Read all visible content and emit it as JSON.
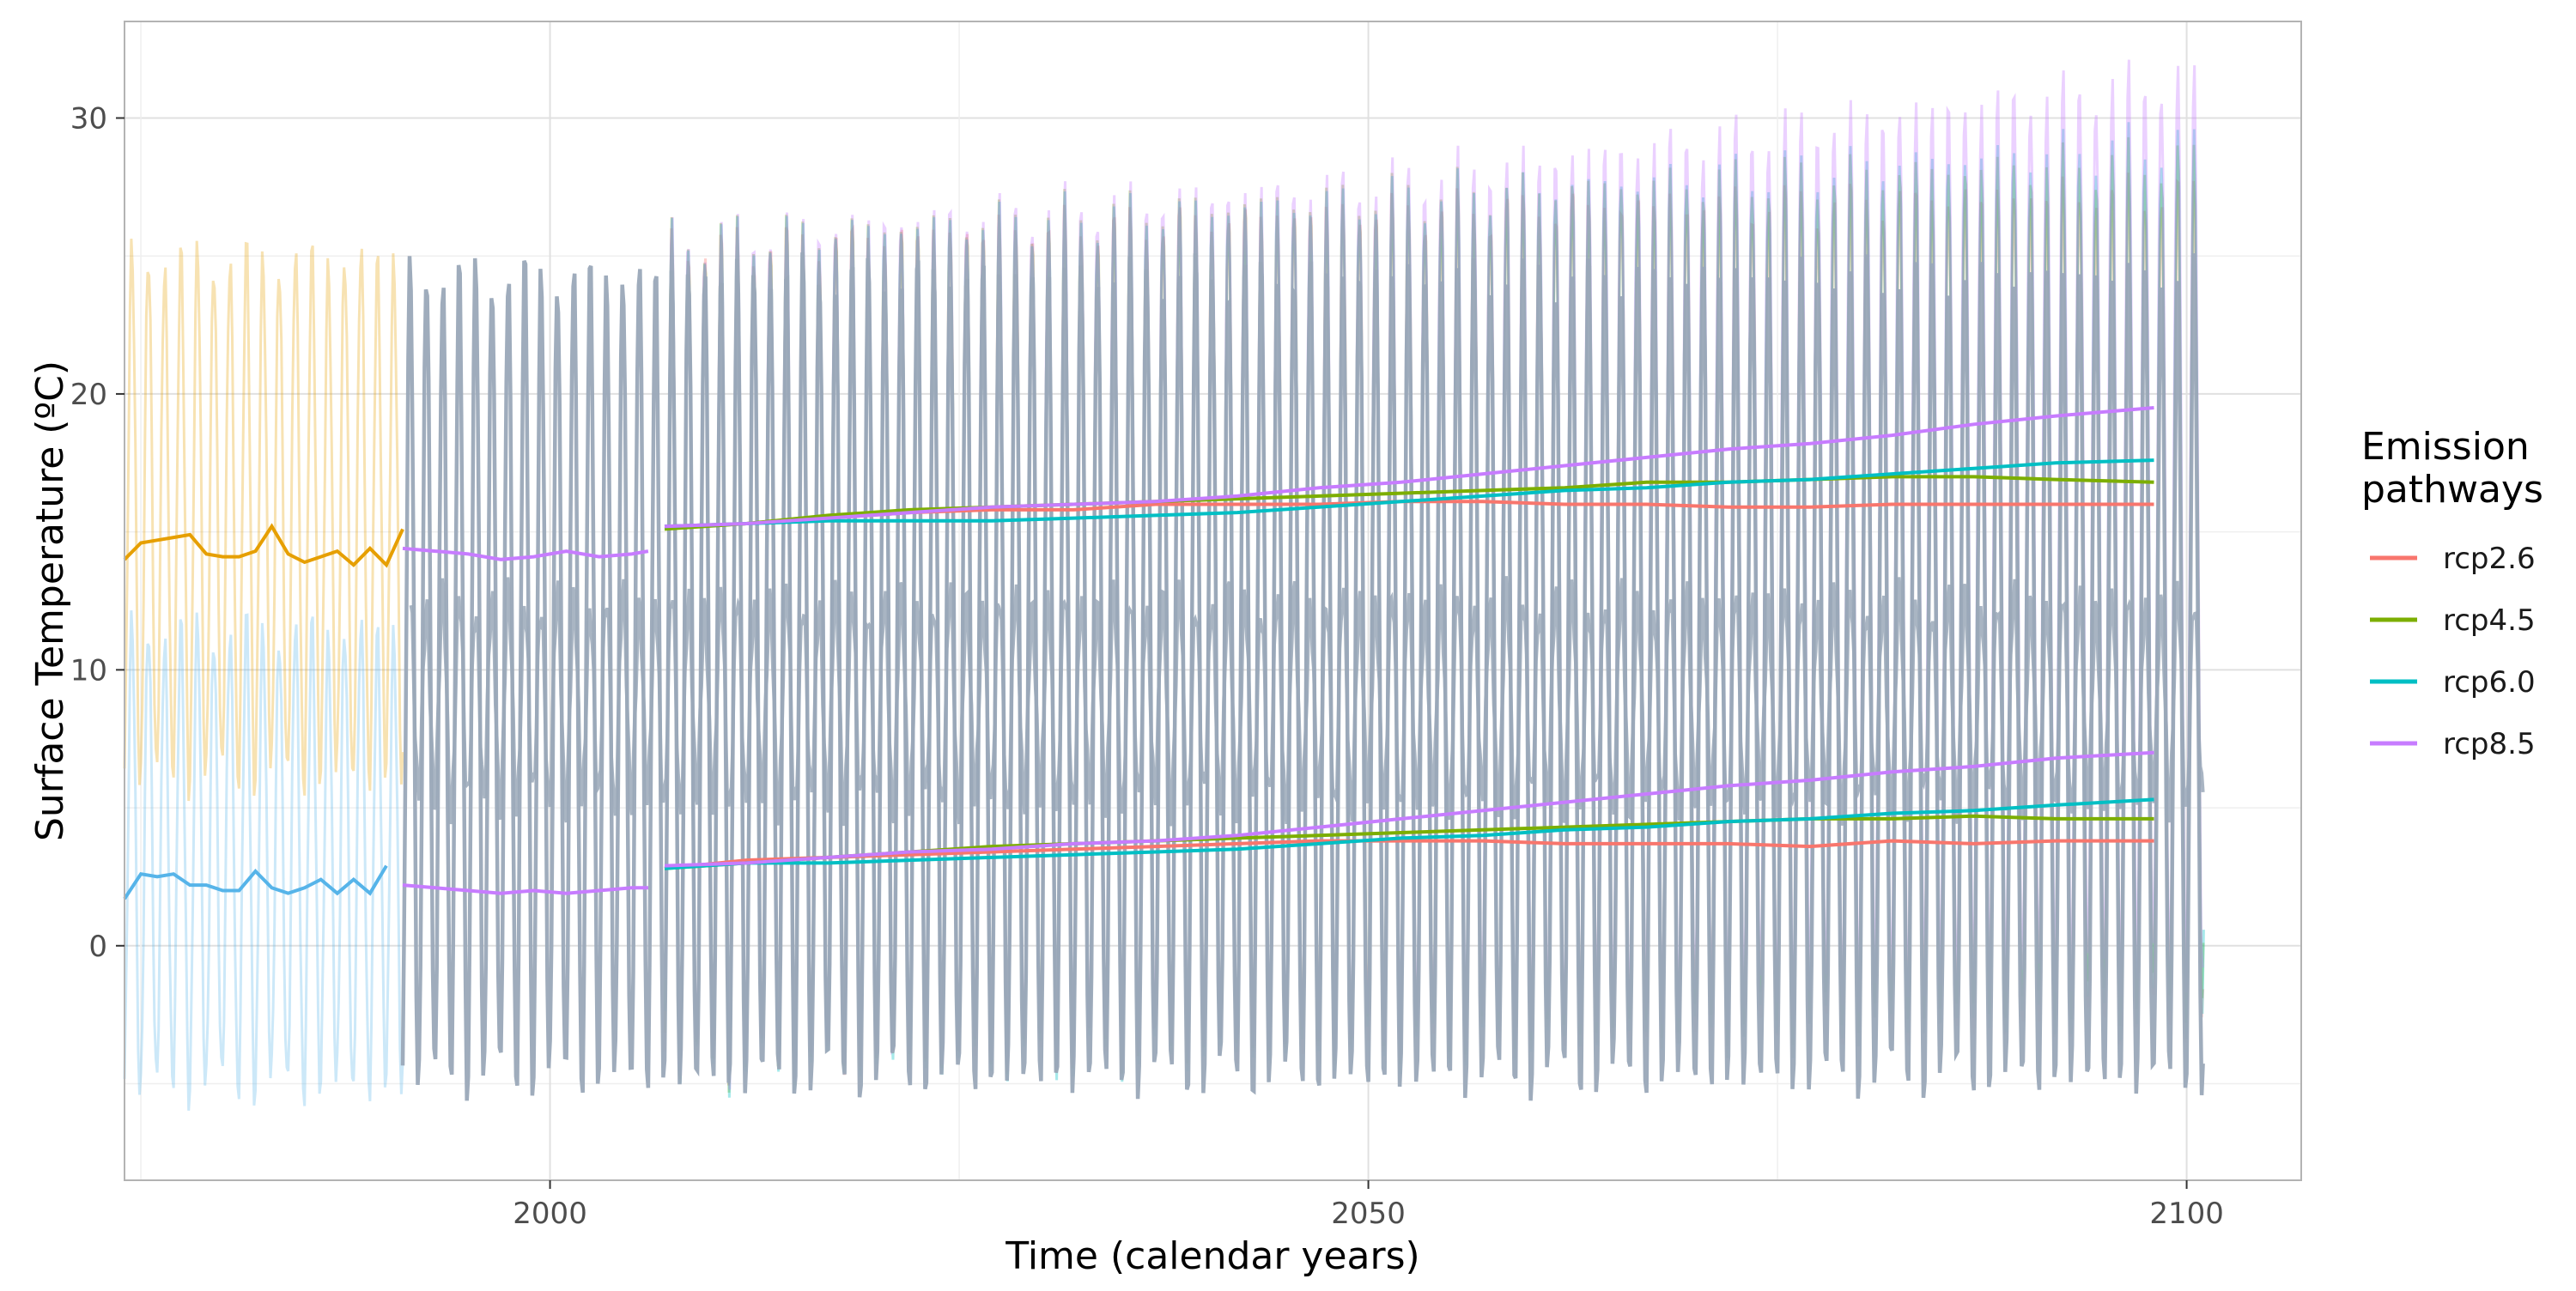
{
  "chart_data": {
    "type": "line",
    "title": "",
    "xlabel": "Time (calendar years)",
    "ylabel": "Surface Temperature (ºC)",
    "xlim": [
      1974,
      2107
    ],
    "ylim": [
      -8.5,
      33.5
    ],
    "x_ticks": [
      2000,
      2050,
      2100
    ],
    "y_ticks": [
      0,
      10,
      20,
      30
    ],
    "grid": true,
    "legend": {
      "title": "Emission pathways",
      "title_lines": [
        "Emission",
        "pathways"
      ],
      "placement": "right"
    },
    "colors": {
      "rcp2.6": "#F8766D",
      "rcp4.5": "#7CAE00",
      "rcp6.0": "#00BFC4",
      "rcp8.5": "#C77CFF",
      "historical_upper": "#E69F00",
      "historical_lower": "#56B4E9",
      "historical_monthly": "#9AA8B8",
      "frame": "#b3b3b3",
      "grid_major": "#e0e0e0",
      "grid_minor": "#efefef"
    },
    "series": [
      {
        "name": "rcp2.6",
        "upper_annual_mean": [
          [
            2007,
            15.2
          ],
          [
            2012,
            15.3
          ],
          [
            2017,
            15.5
          ],
          [
            2022,
            15.7
          ],
          [
            2027,
            15.8
          ],
          [
            2032,
            15.8
          ],
          [
            2037,
            16.0
          ],
          [
            2042,
            16.0
          ],
          [
            2047,
            16.0
          ],
          [
            2052,
            16.1
          ],
          [
            2057,
            16.1
          ],
          [
            2062,
            16.0
          ],
          [
            2067,
            16.0
          ],
          [
            2072,
            15.9
          ],
          [
            2077,
            15.9
          ],
          [
            2082,
            16.0
          ],
          [
            2087,
            16.0
          ],
          [
            2092,
            16.0
          ],
          [
            2098,
            16.0
          ]
        ],
        "lower_annual_mean": [
          [
            2007,
            2.8
          ],
          [
            2012,
            3.1
          ],
          [
            2017,
            3.2
          ],
          [
            2022,
            3.3
          ],
          [
            2027,
            3.4
          ],
          [
            2032,
            3.5
          ],
          [
            2037,
            3.6
          ],
          [
            2042,
            3.7
          ],
          [
            2047,
            3.8
          ],
          [
            2052,
            3.8
          ],
          [
            2057,
            3.8
          ],
          [
            2062,
            3.7
          ],
          [
            2067,
            3.7
          ],
          [
            2072,
            3.7
          ],
          [
            2077,
            3.6
          ],
          [
            2082,
            3.8
          ],
          [
            2087,
            3.7
          ],
          [
            2092,
            3.8
          ],
          [
            2098,
            3.8
          ]
        ],
        "monthly_max_approx": [
          [
            2007,
            25.5
          ],
          [
            2050,
            26.8
          ],
          [
            2098,
            27.5
          ]
        ],
        "monthly_min_approx": [
          [
            2007,
            -4.5
          ],
          [
            2050,
            -4.0
          ],
          [
            2098,
            -3.0
          ]
        ]
      },
      {
        "name": "rcp4.5",
        "upper_annual_mean": [
          [
            2007,
            15.1
          ],
          [
            2012,
            15.3
          ],
          [
            2017,
            15.6
          ],
          [
            2022,
            15.8
          ],
          [
            2027,
            15.9
          ],
          [
            2032,
            16.0
          ],
          [
            2037,
            16.1
          ],
          [
            2042,
            16.2
          ],
          [
            2047,
            16.3
          ],
          [
            2052,
            16.4
          ],
          [
            2057,
            16.5
          ],
          [
            2062,
            16.6
          ],
          [
            2067,
            16.8
          ],
          [
            2072,
            16.8
          ],
          [
            2077,
            16.9
          ],
          [
            2082,
            17.0
          ],
          [
            2087,
            17.0
          ],
          [
            2092,
            16.9
          ],
          [
            2098,
            16.8
          ]
        ],
        "lower_annual_mean": [
          [
            2007,
            2.8
          ],
          [
            2012,
            3.0
          ],
          [
            2017,
            3.2
          ],
          [
            2022,
            3.4
          ],
          [
            2027,
            3.6
          ],
          [
            2032,
            3.7
          ],
          [
            2037,
            3.8
          ],
          [
            2042,
            3.9
          ],
          [
            2047,
            4.0
          ],
          [
            2052,
            4.1
          ],
          [
            2057,
            4.2
          ],
          [
            2062,
            4.3
          ],
          [
            2067,
            4.4
          ],
          [
            2072,
            4.5
          ],
          [
            2077,
            4.6
          ],
          [
            2082,
            4.6
          ],
          [
            2087,
            4.7
          ],
          [
            2092,
            4.6
          ],
          [
            2098,
            4.6
          ]
        ],
        "monthly_max_approx": [
          [
            2007,
            25.6
          ],
          [
            2050,
            27.2
          ],
          [
            2098,
            28.5
          ]
        ],
        "monthly_min_approx": [
          [
            2007,
            -4.5
          ],
          [
            2050,
            -3.5
          ],
          [
            2098,
            -2.0
          ]
        ]
      },
      {
        "name": "rcp6.0",
        "upper_annual_mean": [
          [
            2007,
            15.2
          ],
          [
            2012,
            15.3
          ],
          [
            2017,
            15.4
          ],
          [
            2022,
            15.4
          ],
          [
            2027,
            15.4
          ],
          [
            2032,
            15.5
          ],
          [
            2037,
            15.6
          ],
          [
            2042,
            15.7
          ],
          [
            2047,
            15.9
          ],
          [
            2052,
            16.1
          ],
          [
            2057,
            16.3
          ],
          [
            2062,
            16.5
          ],
          [
            2067,
            16.6
          ],
          [
            2072,
            16.8
          ],
          [
            2077,
            16.9
          ],
          [
            2082,
            17.1
          ],
          [
            2087,
            17.3
          ],
          [
            2092,
            17.5
          ],
          [
            2098,
            17.6
          ]
        ],
        "lower_annual_mean": [
          [
            2007,
            2.8
          ],
          [
            2012,
            3.0
          ],
          [
            2017,
            3.0
          ],
          [
            2022,
            3.1
          ],
          [
            2027,
            3.2
          ],
          [
            2032,
            3.3
          ],
          [
            2037,
            3.4
          ],
          [
            2042,
            3.5
          ],
          [
            2047,
            3.7
          ],
          [
            2052,
            3.9
          ],
          [
            2057,
            4.0
          ],
          [
            2062,
            4.2
          ],
          [
            2067,
            4.3
          ],
          [
            2072,
            4.5
          ],
          [
            2077,
            4.6
          ],
          [
            2082,
            4.8
          ],
          [
            2087,
            4.9
          ],
          [
            2092,
            5.1
          ],
          [
            2098,
            5.3
          ]
        ],
        "monthly_max_approx": [
          [
            2007,
            25.5
          ],
          [
            2050,
            27.0
          ],
          [
            2098,
            29.0
          ]
        ],
        "monthly_min_approx": [
          [
            2007,
            -4.6
          ],
          [
            2050,
            -3.8
          ],
          [
            2098,
            -2.5
          ]
        ]
      },
      {
        "name": "rcp8.5",
        "upper_annual_mean": [
          [
            2007,
            15.2
          ],
          [
            2012,
            15.3
          ],
          [
            2017,
            15.5
          ],
          [
            2022,
            15.7
          ],
          [
            2027,
            15.9
          ],
          [
            2032,
            16.0
          ],
          [
            2037,
            16.1
          ],
          [
            2042,
            16.3
          ],
          [
            2047,
            16.6
          ],
          [
            2052,
            16.8
          ],
          [
            2057,
            17.1
          ],
          [
            2062,
            17.4
          ],
          [
            2067,
            17.7
          ],
          [
            2072,
            18.0
          ],
          [
            2077,
            18.2
          ],
          [
            2082,
            18.5
          ],
          [
            2087,
            18.9
          ],
          [
            2092,
            19.2
          ],
          [
            2098,
            19.5
          ]
        ],
        "lower_annual_mean": [
          [
            2007,
            2.9
          ],
          [
            2012,
            3.0
          ],
          [
            2017,
            3.2
          ],
          [
            2022,
            3.4
          ],
          [
            2027,
            3.5
          ],
          [
            2032,
            3.7
          ],
          [
            2037,
            3.8
          ],
          [
            2042,
            4.0
          ],
          [
            2047,
            4.3
          ],
          [
            2052,
            4.6
          ],
          [
            2057,
            4.9
          ],
          [
            2062,
            5.2
          ],
          [
            2067,
            5.5
          ],
          [
            2072,
            5.8
          ],
          [
            2077,
            6.0
          ],
          [
            2082,
            6.3
          ],
          [
            2087,
            6.5
          ],
          [
            2092,
            6.8
          ],
          [
            2098,
            7.0
          ]
        ],
        "monthly_max_approx": [
          [
            2007,
            25.7
          ],
          [
            2050,
            27.8
          ],
          [
            2098,
            31.5
          ]
        ],
        "monthly_min_approx": [
          [
            2007,
            -4.5
          ],
          [
            2050,
            -3.5
          ],
          [
            2098,
            -1.0
          ]
        ]
      }
    ],
    "historical": {
      "upper_annual_mean_segment_1": [
        [
          1974,
          14.0
        ],
        [
          1975,
          14.6
        ],
        [
          1976,
          14.7
        ],
        [
          1977,
          14.8
        ],
        [
          1978,
          14.9
        ],
        [
          1979,
          14.2
        ],
        [
          1980,
          14.1
        ],
        [
          1981,
          14.1
        ],
        [
          1982,
          14.3
        ],
        [
          1983,
          15.2
        ],
        [
          1984,
          14.2
        ],
        [
          1985,
          13.9
        ],
        [
          1986,
          14.1
        ],
        [
          1987,
          14.3
        ],
        [
          1988,
          13.8
        ],
        [
          1989,
          14.4
        ],
        [
          1990,
          13.8
        ],
        [
          1991,
          15.1
        ]
      ],
      "lower_annual_mean_segment_1": [
        [
          1974,
          1.7
        ],
        [
          1975,
          2.6
        ],
        [
          1976,
          2.5
        ],
        [
          1977,
          2.6
        ],
        [
          1978,
          2.2
        ],
        [
          1979,
          2.2
        ],
        [
          1980,
          2.0
        ],
        [
          1981,
          2.0
        ],
        [
          1982,
          2.7
        ],
        [
          1983,
          2.1
        ],
        [
          1984,
          1.9
        ],
        [
          1985,
          2.1
        ],
        [
          1986,
          2.4
        ],
        [
          1987,
          1.9
        ],
        [
          1988,
          2.4
        ],
        [
          1989,
          1.9
        ],
        [
          1990,
          2.9
        ]
      ],
      "upper_annual_mean_segment_2": [
        [
          1991,
          14.4
        ],
        [
          1993,
          14.3
        ],
        [
          1995,
          14.2
        ],
        [
          1997,
          14.0
        ],
        [
          1999,
          14.1
        ],
        [
          2001,
          14.3
        ],
        [
          2003,
          14.1
        ],
        [
          2005,
          14.2
        ],
        [
          2006,
          14.3
        ]
      ],
      "lower_annual_mean_segment_2": [
        [
          1991,
          2.2
        ],
        [
          1993,
          2.1
        ],
        [
          1995,
          2.0
        ],
        [
          1997,
          1.9
        ],
        [
          1999,
          2.0
        ],
        [
          2001,
          1.9
        ],
        [
          2003,
          2.0
        ],
        [
          2005,
          2.1
        ],
        [
          2006,
          2.1
        ]
      ],
      "monthly_range_approx": {
        "max": 24.5,
        "min": -5.0,
        "start": 1991,
        "end": 2101
      }
    }
  }
}
